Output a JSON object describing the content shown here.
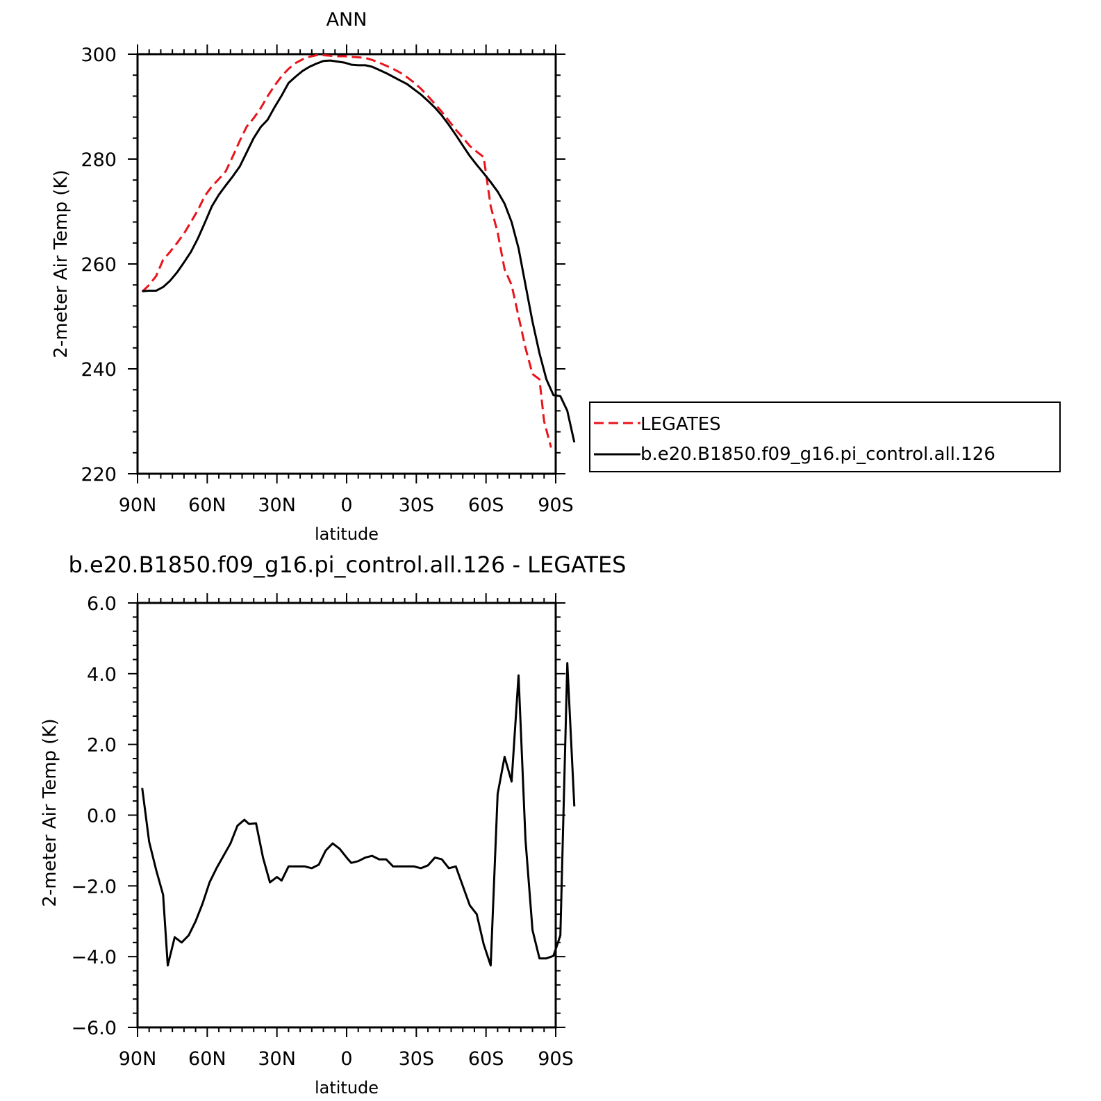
{
  "chart_data": [
    {
      "type": "line",
      "title": "ANN",
      "xlabel": "latitude",
      "ylabel": "2-meter Air Temp (K)",
      "xlim": [
        90,
        -90
      ],
      "ylim": [
        220,
        300
      ],
      "x_ticks": [
        90,
        60,
        30,
        0,
        -30,
        -60,
        -90
      ],
      "x_tick_labels": [
        "90N",
        "60N",
        "30N",
        "0",
        "30S",
        "60S",
        "90S"
      ],
      "y_ticks": [
        220,
        240,
        260,
        280,
        300
      ],
      "y_tick_labels": [
        "220",
        "240",
        "260",
        "280",
        "300"
      ],
      "legend_position": "right",
      "series": [
        {
          "name": "LEGATES",
          "color": "#e8141b",
          "dash": "dashed",
          "points": [
            [
              88,
              254.7
            ],
            [
              85,
              256
            ],
            [
              82,
              257.7
            ],
            [
              79,
              260.8
            ],
            [
              76,
              262.3
            ],
            [
              73,
              264
            ],
            [
              70,
              265.8
            ],
            [
              67,
              268
            ],
            [
              64,
              270.3
            ],
            [
              61,
              273
            ],
            [
              58,
              274.8
            ],
            [
              55,
              276.2
            ],
            [
              52,
              277.7
            ],
            [
              49,
              280.5
            ],
            [
              46,
              283.5
            ],
            [
              43,
              286.2
            ],
            [
              40,
              287.8
            ],
            [
              37,
              289.7
            ],
            [
              34,
              292
            ],
            [
              31,
              294
            ],
            [
              28,
              295.8
            ],
            [
              25,
              297.2
            ],
            [
              22,
              298.3
            ],
            [
              19,
              299
            ],
            [
              16,
              299.5
            ],
            [
              13,
              299.8
            ],
            [
              10,
              299.8
            ],
            [
              7,
              299.7
            ],
            [
              4,
              299.6
            ],
            [
              1,
              299.6
            ],
            [
              -2,
              299.5
            ],
            [
              -5,
              299.4
            ],
            [
              -8,
              299.3
            ],
            [
              -11,
              298.9
            ],
            [
              -14,
              298.4
            ],
            [
              -17,
              297.8
            ],
            [
              -20,
              297.2
            ],
            [
              -23,
              296.5
            ],
            [
              -26,
              295.6
            ],
            [
              -29,
              294.6
            ],
            [
              -32,
              293.4
            ],
            [
              -35,
              292
            ],
            [
              -38,
              290.5
            ],
            [
              -41,
              289
            ],
            [
              -44,
              287.3
            ],
            [
              -47,
              285.6
            ],
            [
              -50,
              284.1
            ],
            [
              -53,
              282.5
            ],
            [
              -56,
              281.4
            ],
            [
              -59,
              280.4
            ],
            [
              -62,
              271
            ],
            [
              -65,
              266
            ],
            [
              -68,
              259
            ],
            [
              -71,
              256
            ],
            [
              -74,
              250
            ],
            [
              -77,
              244
            ],
            [
              -80,
              239
            ],
            [
              -83,
              238
            ],
            [
              -85,
              230
            ],
            [
              -88,
              225
            ]
          ]
        },
        {
          "name": "b.e20.B1850.f09_g16.pi_control.all.126",
          "color": "#000000",
          "dash": "solid",
          "points": [
            [
              88,
              254.8
            ],
            [
              85,
              254.9
            ],
            [
              82,
              254.9
            ],
            [
              79,
              255.6
            ],
            [
              76,
              256.8
            ],
            [
              73,
              258.4
            ],
            [
              70,
              260.3
            ],
            [
              67,
              262.3
            ],
            [
              64,
              264.9
            ],
            [
              61,
              267.9
            ],
            [
              58,
              271
            ],
            [
              55,
              273.2
            ],
            [
              52,
              275
            ],
            [
              49,
              276.7
            ],
            [
              46,
              278.6
            ],
            [
              43,
              281.3
            ],
            [
              40,
              284
            ],
            [
              37,
              286.1
            ],
            [
              34,
              287.5
            ],
            [
              31,
              289.9
            ],
            [
              28,
              292.1
            ],
            [
              25,
              294.5
            ],
            [
              22,
              295.7
            ],
            [
              19,
              296.8
            ],
            [
              16,
              297.6
            ],
            [
              13,
              298.2
            ],
            [
              10,
              298.7
            ],
            [
              7,
              298.8
            ],
            [
              4,
              298.6
            ],
            [
              1,
              298.4
            ],
            [
              -2,
              298
            ],
            [
              -5,
              297.9
            ],
            [
              -8,
              297.9
            ],
            [
              -11,
              297.6
            ],
            [
              -14,
              297
            ],
            [
              -17,
              296.4
            ],
            [
              -20,
              295.7
            ],
            [
              -23,
              295
            ],
            [
              -26,
              294.3
            ],
            [
              -29,
              293.3
            ],
            [
              -32,
              292.3
            ],
            [
              -35,
              291.1
            ],
            [
              -38,
              289.8
            ],
            [
              -41,
              288.3
            ],
            [
              -44,
              286.5
            ],
            [
              -47,
              284.6
            ],
            [
              -50,
              282.6
            ],
            [
              -53,
              280.6
            ],
            [
              -56,
              278.9
            ],
            [
              -59,
              277.3
            ],
            [
              -62,
              275.6
            ],
            [
              -65,
              273.8
            ],
            [
              -68,
              271.5
            ],
            [
              -71,
              268
            ],
            [
              -74,
              263
            ],
            [
              -77,
              256
            ],
            [
              -80,
              249
            ],
            [
              -83,
              243
            ],
            [
              -86,
              238
            ],
            [
              -89,
              235
            ],
            [
              -92,
              234.8
            ],
            [
              -95,
              232
            ],
            [
              -98,
              226
            ]
          ]
        }
      ]
    },
    {
      "type": "line",
      "title": "b.e20.B1850.f09_g16.pi_control.all.126 - LEGATES",
      "xlabel": "latitude",
      "ylabel": "2-meter Air Temp (K)",
      "xlim": [
        90,
        -90
      ],
      "ylim": [
        -6,
        6
      ],
      "x_ticks": [
        90,
        60,
        30,
        0,
        -30,
        -60,
        -90
      ],
      "x_tick_labels": [
        "90N",
        "60N",
        "30N",
        "0",
        "30S",
        "60S",
        "90S"
      ],
      "y_ticks": [
        -6,
        -4,
        -2,
        0,
        2,
        4,
        6
      ],
      "y_tick_labels": [
        "−6.0",
        "−4.0",
        "−2.0",
        "0.0",
        "2.0",
        "4.0",
        "6.0"
      ],
      "series": [
        {
          "color": "#000000",
          "dash": "solid",
          "points": [
            [
              88,
              0.77
            ],
            [
              85,
              -0.75
            ],
            [
              82,
              -1.55
            ],
            [
              79,
              -2.25
            ],
            [
              77,
              -4.25
            ],
            [
              74,
              -3.45
            ],
            [
              71,
              -3.6
            ],
            [
              68,
              -3.4
            ],
            [
              65,
              -3
            ],
            [
              62,
              -2.5
            ],
            [
              59,
              -1.9
            ],
            [
              56,
              -1.5
            ],
            [
              53,
              -1.15
            ],
            [
              50,
              -0.8
            ],
            [
              47,
              -0.3
            ],
            [
              44,
              -0.13
            ],
            [
              42,
              -0.25
            ],
            [
              39,
              -0.23
            ],
            [
              36,
              -1.2
            ],
            [
              33,
              -1.9
            ],
            [
              30,
              -1.75
            ],
            [
              28,
              -1.85
            ],
            [
              25,
              -1.45
            ],
            [
              21,
              -1.45
            ],
            [
              18,
              -1.45
            ],
            [
              15,
              -1.5
            ],
            [
              12,
              -1.4
            ],
            [
              9,
              -1
            ],
            [
              6,
              -0.8
            ],
            [
              3,
              -0.95
            ],
            [
              0,
              -1.2
            ],
            [
              -2,
              -1.35
            ],
            [
              -5,
              -1.3
            ],
            [
              -8,
              -1.2
            ],
            [
              -11,
              -1.15
            ],
            [
              -14,
              -1.25
            ],
            [
              -17,
              -1.25
            ],
            [
              -20,
              -1.45
            ],
            [
              -23,
              -1.45
            ],
            [
              -26,
              -1.45
            ],
            [
              -29,
              -1.45
            ],
            [
              -32,
              -1.5
            ],
            [
              -35,
              -1.42
            ],
            [
              -38,
              -1.2
            ],
            [
              -41,
              -1.25
            ],
            [
              -44,
              -1.5
            ],
            [
              -47,
              -1.45
            ],
            [
              -50,
              -2
            ],
            [
              -53,
              -2.55
            ],
            [
              -56,
              -2.8
            ],
            [
              -59,
              -3.65
            ],
            [
              -62,
              -4.25
            ],
            [
              -65,
              0.6
            ],
            [
              -68,
              1.65
            ],
            [
              -71,
              0.95
            ],
            [
              -74,
              3.95
            ],
            [
              -77,
              -0.7
            ],
            [
              -80,
              -3.25
            ],
            [
              -83,
              -4.05
            ],
            [
              -86,
              -4.05
            ],
            [
              -89,
              -3.98
            ],
            [
              -92,
              -3.4
            ],
            [
              -95,
              4.3
            ],
            [
              -98,
              0.25
            ]
          ]
        }
      ]
    }
  ]
}
